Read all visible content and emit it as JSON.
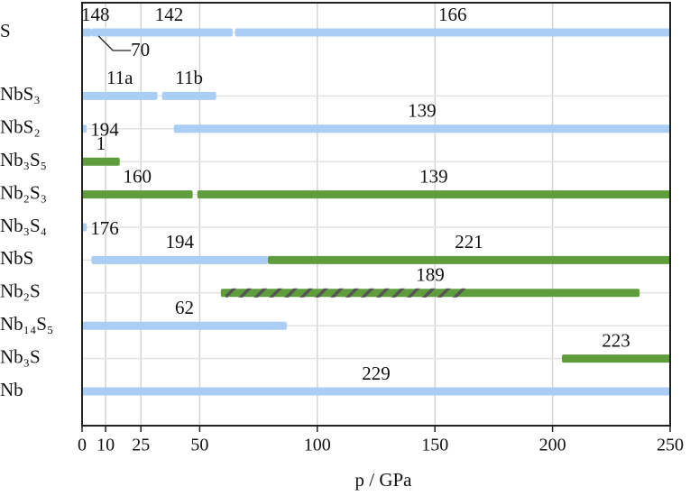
{
  "chart_data": {
    "type": "range-bar",
    "x_label": "p / GPa",
    "xlim": [
      0,
      250
    ],
    "xticks": [
      0,
      10,
      25,
      50,
      100,
      150,
      200,
      250
    ],
    "grid": true,
    "rows": [
      {
        "label": "S",
        "segments": [
          {
            "label": "148",
            "start": 0,
            "end": 4,
            "color": "#a9cdf3"
          },
          {
            "label": "70",
            "start": 4,
            "end": 10,
            "color": "#a9cdf3"
          },
          {
            "label": "142",
            "start": 10,
            "end": 64,
            "color": "#a9cdf3"
          },
          {
            "label": "166",
            "start": 65,
            "end": 250,
            "color": "#a9cdf3"
          }
        ]
      },
      {
        "label": "NbS₃",
        "segments": [
          {
            "label": "11a",
            "start": 0,
            "end": 32,
            "color": "#a9cdf3"
          },
          {
            "label": "11b",
            "start": 34,
            "end": 57,
            "color": "#a9cdf3"
          }
        ]
      },
      {
        "label": "NbS₂",
        "segments": [
          {
            "label": "194",
            "start": 0,
            "end": 2,
            "color": "#a9cdf3"
          },
          {
            "label": "139",
            "start": 39,
            "end": 250,
            "color": "#a9cdf3"
          }
        ]
      },
      {
        "label": "Nb₃S₅",
        "segments": [
          {
            "label": "1",
            "start": 0,
            "end": 16,
            "color": "#5f9c3c"
          }
        ]
      },
      {
        "label": "Nb₂S₃",
        "segments": [
          {
            "label": "160",
            "start": 0,
            "end": 47,
            "color": "#5f9c3c"
          },
          {
            "label": "139",
            "start": 49,
            "end": 250,
            "color": "#5f9c3c"
          }
        ]
      },
      {
        "label": "Nb₃S₄",
        "segments": [
          {
            "label": "176",
            "start": 0,
            "end": 2,
            "color": "#a9cdf3"
          }
        ]
      },
      {
        "label": "NbS",
        "segments": [
          {
            "label": "194",
            "start": 4,
            "end": 79,
            "color": "#a9cdf3"
          },
          {
            "label": "221",
            "start": 79,
            "end": 250,
            "color": "#5f9c3c"
          }
        ]
      },
      {
        "label": "Nb₂S",
        "segments": [
          {
            "label": "189",
            "start": 59,
            "end": 237,
            "color": "#5f9c3c"
          }
        ],
        "hatch": [
          61,
          163
        ]
      },
      {
        "label": "Nb₁₄S₅",
        "segments": [
          {
            "label": "62",
            "start": 0,
            "end": 87,
            "color": "#a9cdf3"
          }
        ]
      },
      {
        "label": "Nb₃S",
        "segments": [
          {
            "label": "223",
            "start": 204,
            "end": 250,
            "color": "#5f9c3c"
          }
        ]
      },
      {
        "label": "Nb",
        "segments": [
          {
            "label": "229",
            "start": 0,
            "end": 250,
            "color": "#a9cdf3"
          }
        ]
      }
    ]
  }
}
